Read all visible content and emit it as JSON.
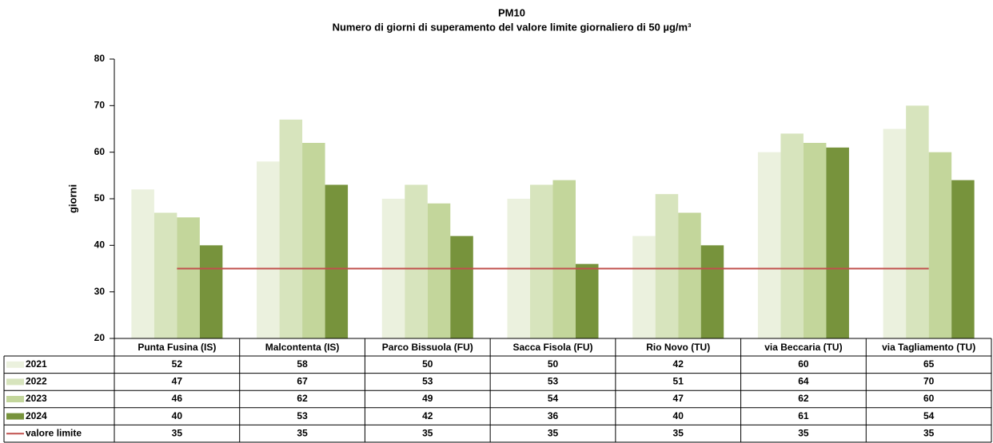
{
  "chart_data": {
    "type": "bar",
    "title": "PM10",
    "subtitle": "Numero di giorni di superamento del valore limite giornaliero di 50 µg/m³",
    "y_label": "giorni",
    "categories": [
      "Punta Fusina (IS)",
      "Malcontenta (IS)",
      "Parco Bissuola (FU)",
      "Sacca Fisola (FU)",
      "Rio Novo  (TU)",
      "via Beccaria (TU)",
      "via Tagliamento (TU)"
    ],
    "series": [
      {
        "name": "2021",
        "color": "#ebf1de",
        "values": [
          52,
          58,
          50,
          50,
          42,
          60,
          65
        ]
      },
      {
        "name": "2022",
        "color": "#d7e4bd",
        "values": [
          47,
          67,
          53,
          53,
          51,
          64,
          70
        ]
      },
      {
        "name": "2023",
        "color": "#c3d69b",
        "values": [
          46,
          62,
          49,
          54,
          47,
          62,
          60
        ]
      },
      {
        "name": "2024",
        "color": "#77933c",
        "values": [
          40,
          53,
          42,
          36,
          40,
          61,
          54
        ]
      },
      {
        "name": "valore limite",
        "color": "#c0504d",
        "type": "line",
        "values": [
          35,
          35,
          35,
          35,
          35,
          35,
          35
        ]
      }
    ],
    "ylim": [
      20,
      80
    ],
    "yticks": [
      20,
      30,
      40,
      50,
      60,
      70,
      80
    ],
    "grid": false
  }
}
